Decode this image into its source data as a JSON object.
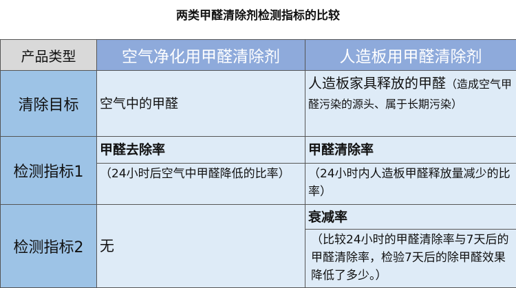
{
  "title": "两类甲醛清除剂检测指标的比较",
  "header": {
    "col0": "产品类型",
    "col1": "空气净化用甲醛清除剂",
    "col2": "人造板用甲醛清除剂"
  },
  "rows": [
    {
      "label": "清除目标",
      "col1": "空气中的甲醛",
      "col2_main": "人造板家具释放的甲醛",
      "col2_note": "（造成空气甲醛污染的源头、属于长期污染）"
    },
    {
      "label": "检测指标1",
      "col1_title": "甲醛去除率",
      "col1_note": "（24小时后空气中甲醛降低的比率）",
      "col2_title": "甲醛清除率",
      "col2_note": "（24小时内人造板甲醛释放量减少的比率）"
    },
    {
      "label": "检测指标2",
      "col1": "无",
      "col2_title": "衰减率",
      "col2_note": "（比较24小时的甲醛清除率与7天后的甲醛清除率，检验7天后的除甲醛效果降低了多少。）"
    }
  ]
}
